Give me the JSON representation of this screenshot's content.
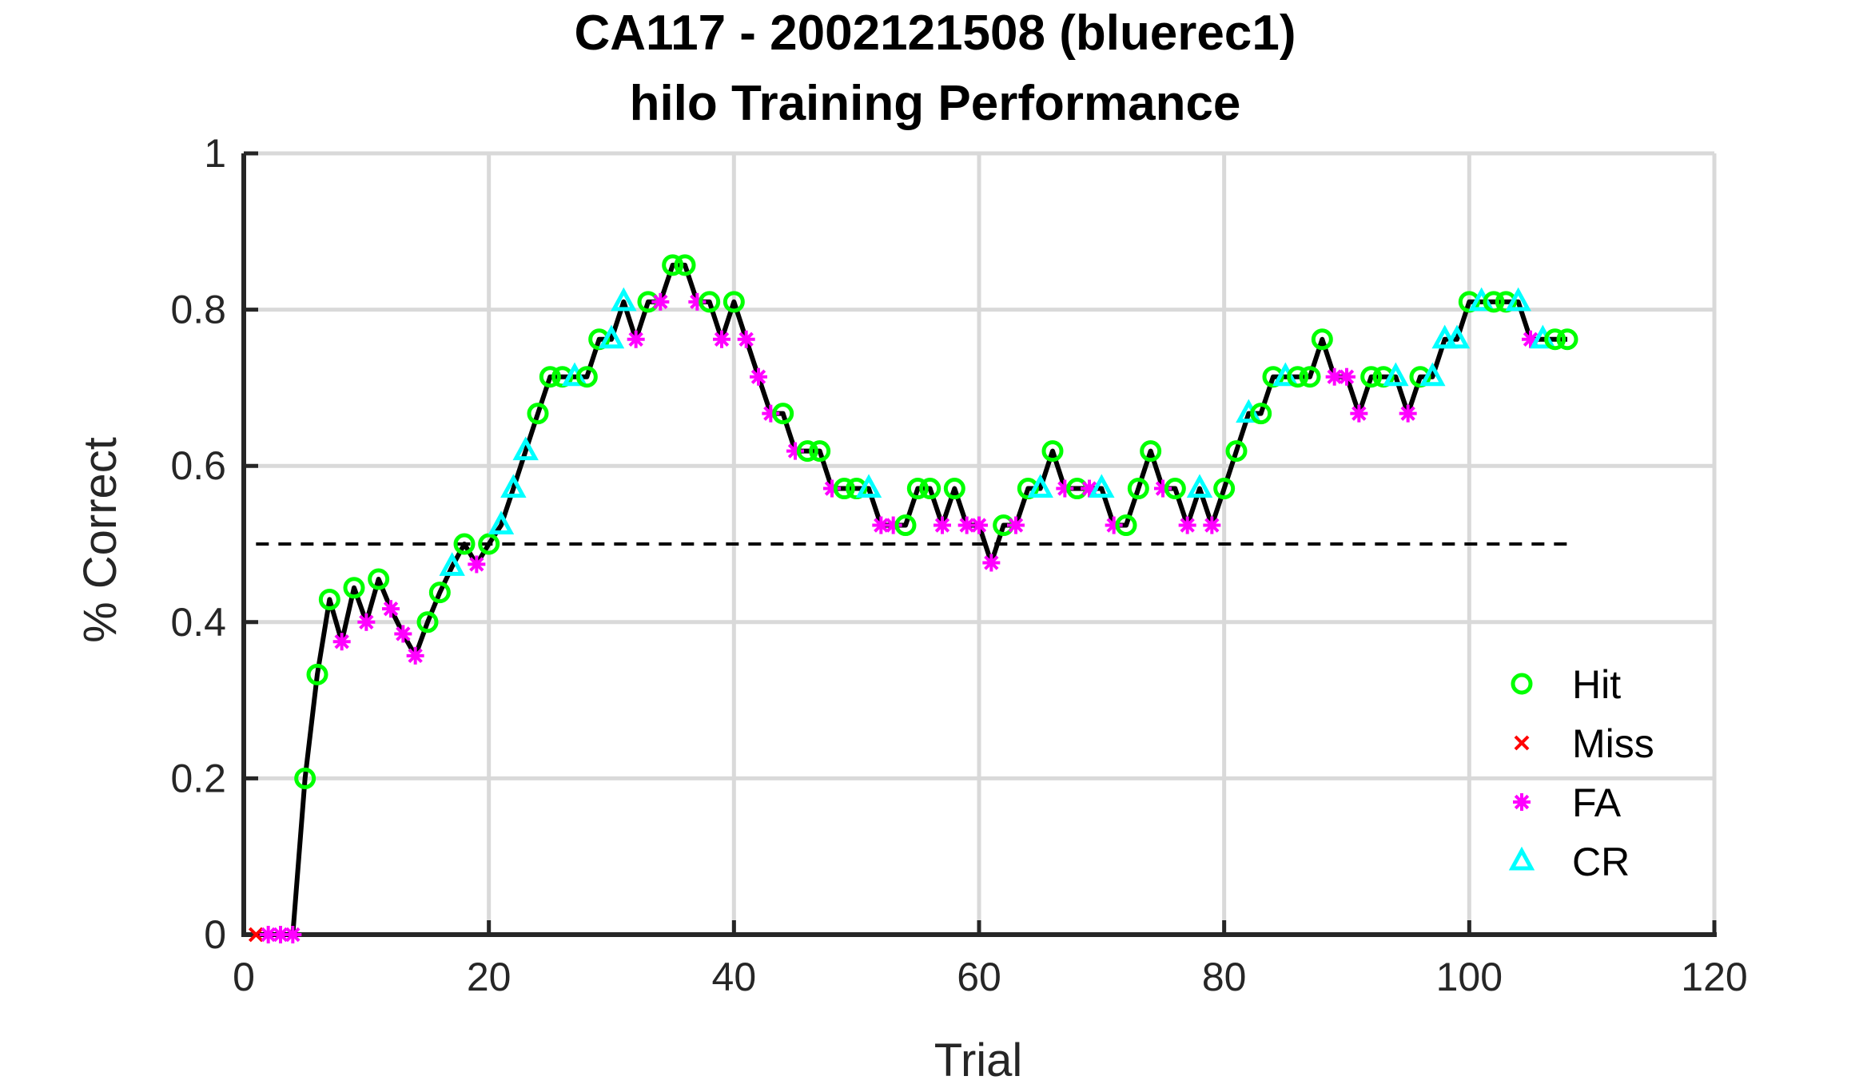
{
  "chart_data": {
    "type": "scatter",
    "title": "CA117 - 2002121508 (bluerec1)",
    "subtitle": "hilo Training Performance",
    "xlabel": "Trial",
    "ylabel": "% Correct",
    "xlim": [
      0,
      120
    ],
    "ylim": [
      0,
      1
    ],
    "xticks": [
      "0",
      "20",
      "40",
      "60",
      "80",
      "100",
      "120"
    ],
    "yticks": [
      "0",
      "0.2",
      "0.4",
      "0.6",
      "0.8",
      "1"
    ],
    "grid": true,
    "chance_line": 0.5,
    "legend_position": "bottom-right",
    "colors": {
      "Hit": "#00ff00",
      "Miss": "#ff0000",
      "FA": "#ff00ff",
      "CR": "#00ffff",
      "line": "#000000"
    },
    "performance": [
      0,
      0,
      0,
      0,
      0.2,
      0.333,
      0.429,
      0.375,
      0.444,
      0.4,
      0.455,
      0.417,
      0.385,
      0.357,
      0.4,
      0.438,
      0.471,
      0.5,
      0.474,
      0.5,
      0.524,
      0.571,
      0.619,
      0.667,
      0.714,
      0.714,
      0.714,
      0.714,
      0.762,
      0.762,
      0.81,
      0.762,
      0.81,
      0.81,
      0.857,
      0.857,
      0.81,
      0.81,
      0.762,
      0.81,
      0.762,
      0.714,
      0.667,
      0.667,
      0.619,
      0.619,
      0.619,
      0.571,
      0.571,
      0.571,
      0.571,
      0.524,
      0.524,
      0.524,
      0.571,
      0.571,
      0.524,
      0.571,
      0.524,
      0.524,
      0.476,
      0.524,
      0.524,
      0.571,
      0.571,
      0.619,
      0.571,
      0.571,
      0.571,
      0.571,
      0.524,
      0.524,
      0.571,
      0.619,
      0.571,
      0.571,
      0.524,
      0.571,
      0.524,
      0.571,
      0.619,
      0.667,
      0.667,
      0.714,
      0.714,
      0.714,
      0.714,
      0.762,
      0.714,
      0.714,
      0.667,
      0.714,
      0.714,
      0.714,
      0.667,
      0.714,
      0.714,
      0.762,
      0.762,
      0.81,
      0.81,
      0.81,
      0.81,
      0.81,
      0.762,
      0.762,
      0.762,
      0.762
    ],
    "outcomes": [
      "M",
      "F",
      "F",
      "F",
      "H",
      "H",
      "H",
      "F",
      "H",
      "F",
      "H",
      "F",
      "F",
      "F",
      "H",
      "H",
      "C",
      "H",
      "F",
      "H",
      "C",
      "C",
      "C",
      "H",
      "H",
      "H",
      "C",
      "H",
      "H",
      "C",
      "C",
      "F",
      "H",
      "F",
      "H",
      "H",
      "F",
      "H",
      "F",
      "H",
      "F",
      "F",
      "F",
      "H",
      "F",
      "H",
      "H",
      "F",
      "H",
      "H",
      "C",
      "F",
      "F",
      "H",
      "H",
      "H",
      "F",
      "H",
      "F",
      "F",
      "F",
      "H",
      "F",
      "H",
      "C",
      "H",
      "F",
      "H",
      "F",
      "C",
      "F",
      "H",
      "H",
      "H",
      "F",
      "H",
      "F",
      "C",
      "F",
      "H",
      "H",
      "C",
      "H",
      "H",
      "C",
      "H",
      "H",
      "H",
      "F",
      "F",
      "F",
      "H",
      "H",
      "C",
      "F",
      "H",
      "C",
      "C",
      "C",
      "H",
      "C",
      "H",
      "H",
      "C",
      "F",
      "C",
      "H",
      "H"
    ],
    "series": [
      {
        "name": "Hit",
        "marker": "circle"
      },
      {
        "name": "Miss",
        "marker": "x"
      },
      {
        "name": "FA",
        "marker": "asterisk"
      },
      {
        "name": "CR",
        "marker": "triangle"
      }
    ]
  }
}
